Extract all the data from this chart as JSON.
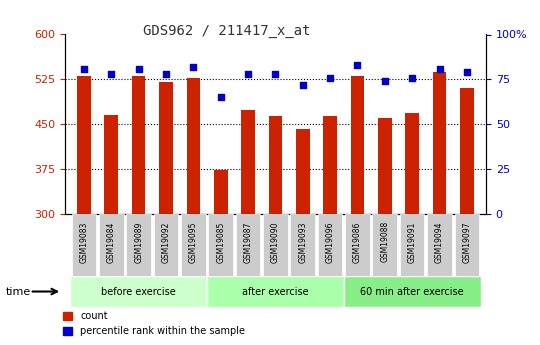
{
  "title": "GDS962 / 211417_x_at",
  "categories": [
    "GSM19083",
    "GSM19084",
    "GSM19089",
    "GSM19092",
    "GSM19095",
    "GSM19085",
    "GSM19087",
    "GSM19090",
    "GSM19093",
    "GSM19096",
    "GSM19086",
    "GSM19088",
    "GSM19091",
    "GSM19094",
    "GSM19097"
  ],
  "bar_values": [
    530,
    466,
    530,
    521,
    527,
    373,
    473,
    463,
    442,
    463,
    530,
    460,
    468,
    537,
    510
  ],
  "percentile_values": [
    81,
    78,
    81,
    78,
    82,
    65,
    78,
    78,
    72,
    76,
    83,
    74,
    76,
    81,
    79
  ],
  "bar_color": "#cc2200",
  "dot_color": "#0000cc",
  "ylim_left": [
    300,
    600
  ],
  "ylim_right": [
    0,
    100
  ],
  "yticks_left": [
    300,
    375,
    450,
    525,
    600
  ],
  "yticks_right": [
    0,
    25,
    50,
    75,
    100
  ],
  "groups": [
    {
      "label": "before exercise",
      "start": 0,
      "end": 5,
      "color": "#ccffcc"
    },
    {
      "label": "after exercise",
      "start": 5,
      "end": 10,
      "color": "#aaffaa"
    },
    {
      "label": "60 min after exercise",
      "start": 10,
      "end": 15,
      "color": "#88ee88"
    }
  ],
  "legend_count_label": "count",
  "legend_pct_label": "percentile rank within the sample",
  "xlabel_left": "time",
  "bg_color": "#ffffff",
  "tick_label_color_left": "#cc2200",
  "tick_label_color_right": "#0000cc",
  "title_color": "#333333",
  "grid_color": "#000000",
  "bar_bottom": 300,
  "xticklabel_bg": "#cccccc"
}
